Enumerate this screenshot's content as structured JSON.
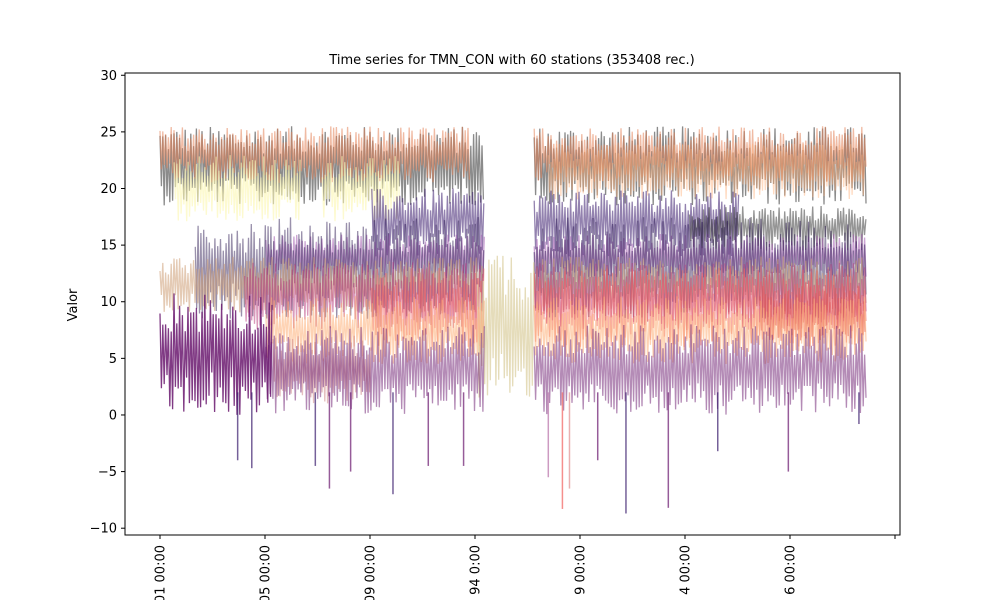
{
  "chart_data": {
    "type": "line",
    "title": "Time series for TMN_CON with 60 stations (353408 rec.)",
    "xlabel": "",
    "ylabel": "Valor",
    "ylim": [
      -10.6,
      30.2
    ],
    "yticks": [
      -10,
      -5,
      0,
      5,
      10,
      15,
      20,
      25,
      30
    ],
    "xtick_labels": [
      "01 00:00",
      "05 00:00",
      "09 00:00",
      "94 0:00",
      "9 00:00",
      "4 00:00",
      "6 00:00"
    ],
    "grid": false,
    "legend": "none",
    "colormap": [
      "#1f0c48",
      "#6a176e",
      "#b73779",
      "#f1605d",
      "#feaf77",
      "#fcf6b1",
      "#2b2b2b"
    ],
    "series_count_note": "60 stations",
    "bands": [
      {
        "color": "#2b2b2b",
        "alpha": 0.55,
        "center": 22.0,
        "amplitude": 3.5,
        "segments": [
          [
            0,
            0.46
          ],
          [
            0.53,
            1.0
          ]
        ]
      },
      {
        "color": "#e4845a",
        "alpha": 0.55,
        "center": 23.0,
        "amplitude": 2.5,
        "segments": [
          [
            0,
            0.44
          ],
          [
            0.53,
            1.0
          ]
        ]
      },
      {
        "color": "#feaf77",
        "alpha": 0.45,
        "center": 21.5,
        "amplitude": 2.5,
        "segments": [
          [
            0.55,
            1.0
          ]
        ]
      },
      {
        "color": "#fcf6b1",
        "alpha": 0.6,
        "center": 20.0,
        "amplitude": 3.0,
        "segments": [
          [
            0.02,
            0.2
          ],
          [
            0.23,
            0.34
          ]
        ]
      },
      {
        "color": "#3b1c6e",
        "alpha": 0.55,
        "center": 17.0,
        "amplitude": 3.0,
        "segments": [
          [
            0.3,
            0.46
          ],
          [
            0.53,
            0.82
          ]
        ]
      },
      {
        "color": "#2b2b2b",
        "alpha": 0.5,
        "center": 16.5,
        "amplitude": 2.0,
        "segments": [
          [
            0.75,
            1.0
          ]
        ]
      },
      {
        "color": "#a35bb0",
        "alpha": 0.55,
        "center": 14.0,
        "amplitude": 2.0,
        "segments": [
          [
            0.15,
            0.46
          ],
          [
            0.53,
            1.0
          ]
        ]
      },
      {
        "color": "#1f0c48",
        "alpha": 0.45,
        "center": 13.0,
        "amplitude": 4.5,
        "segments": [
          [
            0.05,
            0.46
          ],
          [
            0.53,
            1.0
          ]
        ]
      },
      {
        "color": "#cd9f77",
        "alpha": 0.55,
        "center": 11.5,
        "amplitude": 2.5,
        "segments": [
          [
            0,
            0.46
          ],
          [
            0.53,
            1.0
          ]
        ]
      },
      {
        "color": "#b73779",
        "alpha": 0.5,
        "center": 10.5,
        "amplitude": 3.0,
        "segments": [
          [
            0.12,
            0.46
          ],
          [
            0.53,
            1.0
          ]
        ]
      },
      {
        "color": "#f1605d",
        "alpha": 0.5,
        "center": 9.5,
        "amplitude": 3.5,
        "segments": [
          [
            0.3,
            0.46
          ],
          [
            0.53,
            1.0
          ]
        ]
      },
      {
        "color": "#e05a5c",
        "alpha": 0.6,
        "center": 9.0,
        "amplitude": 2.5,
        "segments": [
          [
            0.85,
            1.0
          ]
        ]
      },
      {
        "color": "#e0d6ae",
        "alpha": 0.85,
        "center": 8.0,
        "amplitude": 7.0,
        "segments": [
          [
            0.45,
            0.53
          ]
        ]
      },
      {
        "color": "#feaf77",
        "alpha": 0.55,
        "center": 7.5,
        "amplitude": 3.0,
        "segments": [
          [
            0.15,
            0.46
          ],
          [
            0.53,
            1.0
          ]
        ]
      },
      {
        "color": "#d08a8a",
        "alpha": 0.55,
        "center": 4.0,
        "amplitude": 3.0,
        "segments": [
          [
            0.16,
            0.3
          ]
        ]
      },
      {
        "color": "#6a176e",
        "alpha": 0.5,
        "center": 4.0,
        "amplitude": 4.0,
        "segments": [
          [
            0.15,
            0.46
          ],
          [
            0.53,
            1.0
          ]
        ]
      },
      {
        "color": "#6a176e",
        "alpha": 0.85,
        "center": 5.5,
        "amplitude": 5.5,
        "segments": [
          [
            0,
            0.16
          ]
        ]
      }
    ],
    "spikes": [
      {
        "color": "#3b1c6e",
        "t": 0.11,
        "lo": -4.0,
        "hi": 2.0
      },
      {
        "color": "#3b1c6e",
        "t": 0.13,
        "lo": -4.7,
        "hi": 2.0
      },
      {
        "color": "#3b1c6e",
        "t": 0.22,
        "lo": -4.5,
        "hi": 2.0
      },
      {
        "color": "#6a176e",
        "t": 0.24,
        "lo": -6.5,
        "hi": 2.0
      },
      {
        "color": "#6a176e",
        "t": 0.27,
        "lo": -5.0,
        "hi": 2.0
      },
      {
        "color": "#3b1c6e",
        "t": 0.33,
        "lo": -7.0,
        "hi": 2.0
      },
      {
        "color": "#6a176e",
        "t": 0.38,
        "lo": -4.5,
        "hi": 2.0
      },
      {
        "color": "#6a176e",
        "t": 0.43,
        "lo": -4.5,
        "hi": 2.0
      },
      {
        "color": "#b86fa6",
        "t": 0.55,
        "lo": -5.5,
        "hi": 2.0
      },
      {
        "color": "#f1605d",
        "t": 0.57,
        "lo": -8.3,
        "hi": 2.0
      },
      {
        "color": "#e18f8f",
        "t": 0.58,
        "lo": -6.5,
        "hi": 2.0
      },
      {
        "color": "#6a176e",
        "t": 0.62,
        "lo": -4.0,
        "hi": 2.0
      },
      {
        "color": "#3b1c6e",
        "t": 0.66,
        "lo": -8.7,
        "hi": 2.0
      },
      {
        "color": "#6a176e",
        "t": 0.72,
        "lo": -8.2,
        "hi": 2.0
      },
      {
        "color": "#3b1c6e",
        "t": 0.79,
        "lo": -3.2,
        "hi": 2.0
      },
      {
        "color": "#6a176e",
        "t": 0.89,
        "lo": -5.0,
        "hi": 2.0
      },
      {
        "color": "#3b1c6e",
        "t": 0.99,
        "lo": -0.8,
        "hi": 2.0
      }
    ]
  }
}
